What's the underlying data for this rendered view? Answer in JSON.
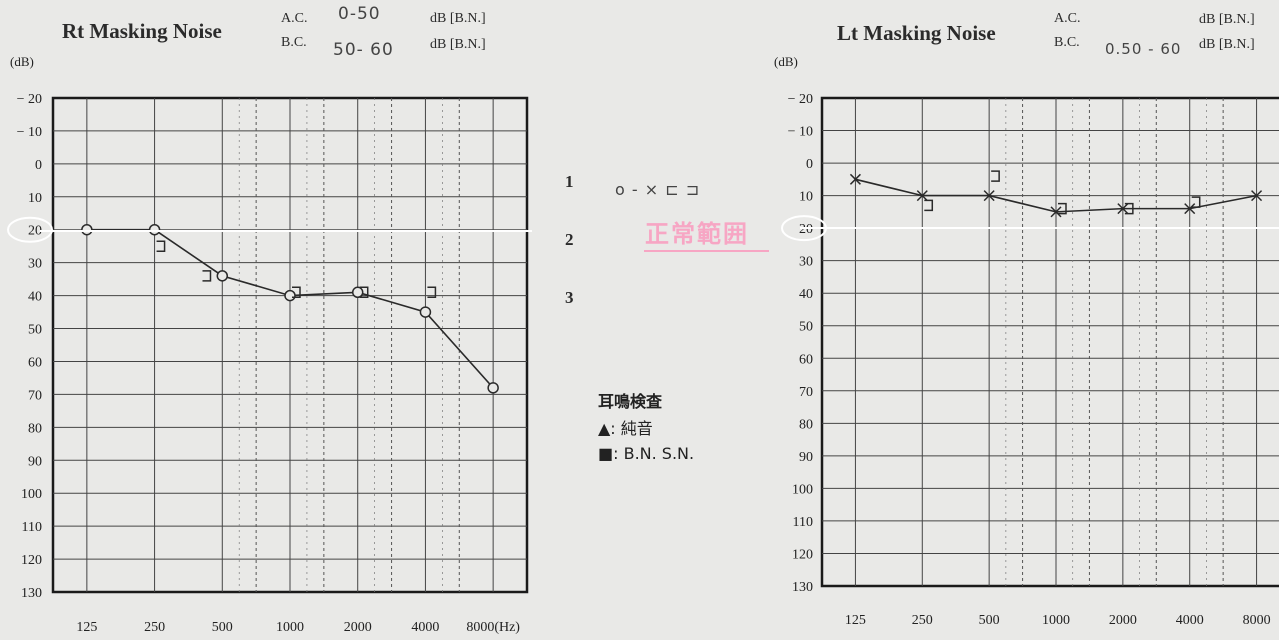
{
  "right_panel": {
    "title": "Rt Masking Noise",
    "ac_label": "A.C.",
    "ac_value": "0-50",
    "ac_unit": "dB [B.N.]",
    "bc_label": "B.C.",
    "bc_value": "50- 60",
    "bc_unit": "dB [B.N.]"
  },
  "left_panel": {
    "title": "Lt Masking Noise",
    "ac_label": "A.C.",
    "ac_unit": "dB [B.N.]",
    "bc_label": "B.C.",
    "bc_value": "0.50 - 60",
    "bc_unit": "dB [B.N.]"
  },
  "center": {
    "marks": [
      "1",
      "2",
      "3"
    ],
    "symbols": "o - × ⊏ ⊐",
    "normal_range_label": "正常範囲",
    "tinnitus_title": "耳鳴検査",
    "legend_pure_tone": "▲: 純音",
    "legend_bn_sn": "■: B.N.   S.N."
  },
  "chart_data": [
    {
      "type": "line",
      "title": "Rt Masking Noise",
      "ylabel": "(dB)",
      "xlabel": "(Hz)",
      "x_ticks": [
        "125",
        "250",
        "500",
        "1000",
        "2000",
        "4000",
        "8000"
      ],
      "y_ticks": [
        "-20",
        "-10",
        "0",
        "10",
        "20",
        "30",
        "40",
        "50",
        "60",
        "70",
        "80",
        "90",
        "100",
        "110",
        "120",
        "130"
      ],
      "ylim": [
        -20,
        130
      ],
      "y_inverted": true,
      "color": "#2a2a2a",
      "series": [
        {
          "marker": "circle",
          "x": [
            125,
            250,
            500,
            1000,
            2000,
            4000,
            8000
          ],
          "y": [
            20,
            20,
            34,
            40,
            39,
            45,
            68
          ]
        },
        {
          "marker": "bracket",
          "x": [
            250,
            400,
            1000,
            2000,
            4000
          ],
          "y": [
            25,
            34,
            39,
            39,
            39
          ]
        }
      ],
      "reference_line": {
        "y": 20,
        "label": "20"
      }
    },
    {
      "type": "line",
      "title": "Lt Masking Noise",
      "ylabel": "(dB)",
      "x_ticks": [
        "125",
        "250",
        "500",
        "1000",
        "2000",
        "4000",
        "8000"
      ],
      "y_ticks": [
        "-20",
        "-10",
        "0",
        "10",
        "20",
        "30",
        "40",
        "50",
        "60",
        "70",
        "80",
        "90",
        "100",
        "110",
        "120",
        "130"
      ],
      "ylim": [
        -20,
        130
      ],
      "y_inverted": true,
      "color": "#2a2a2a",
      "series": [
        {
          "marker": "cross",
          "x": [
            125,
            250,
            500,
            1000,
            2000,
            4000,
            8000
          ],
          "y": [
            5,
            10,
            10,
            15,
            14,
            14,
            10
          ]
        },
        {
          "marker": "bracket",
          "x": [
            250,
            500,
            1000,
            2000,
            4000
          ],
          "y": [
            13,
            4,
            14,
            14,
            12
          ]
        }
      ],
      "reference_line": {
        "y": 20,
        "label": "20"
      }
    }
  ]
}
